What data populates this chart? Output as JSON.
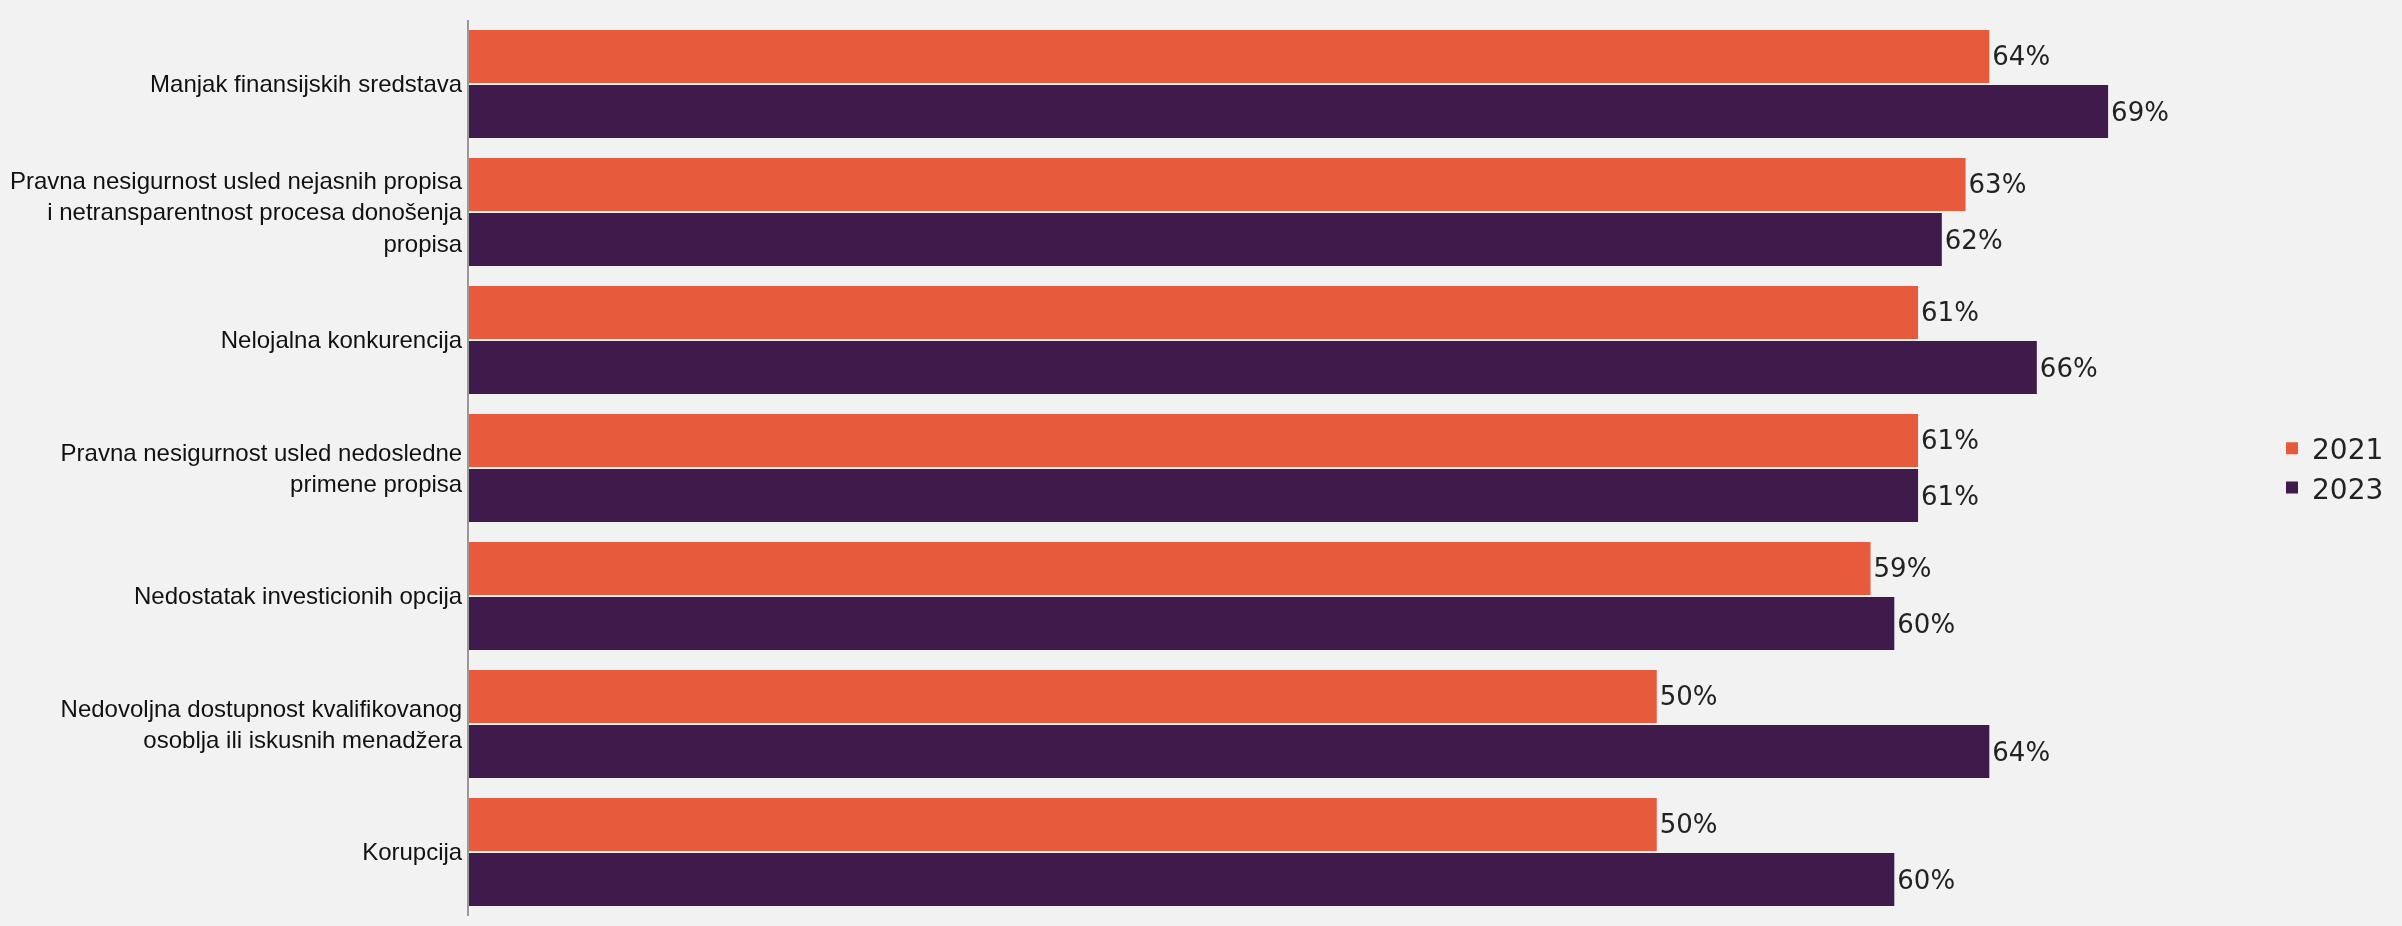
{
  "chart_data": {
    "type": "bar",
    "orientation": "horizontal",
    "legend": "right",
    "grid": false,
    "categories": [
      "Manjak finansijskih sredstava",
      "Pravna nesigurnost usled nejasnih propisa i netransparentnost procesa donošenja propisa",
      "Nelojalna konkurencija",
      "Pravna nesigurnost usled nedosledne primene propisa",
      "Nedostatak investicionih opcija",
      "Nedovoljna dostupnost kvalifikovanog osoblja ili iskusnih menadžera",
      "Korupcija"
    ],
    "series": [
      {
        "name": "2021",
        "color": "#e85a3c",
        "values": [
          64,
          63,
          61,
          61,
          59,
          50,
          50
        ],
        "value_labels": [
          "64%",
          "63%",
          "61%",
          "61%",
          "59%",
          "50%",
          "50%"
        ]
      },
      {
        "name": "2023",
        "color": "#3f1a4b",
        "values": [
          69,
          62,
          66,
          61,
          60,
          64,
          60
        ],
        "value_labels": [
          "69%",
          "62%",
          "66%",
          "61%",
          "60%",
          "64%",
          "60%"
        ]
      }
    ]
  }
}
